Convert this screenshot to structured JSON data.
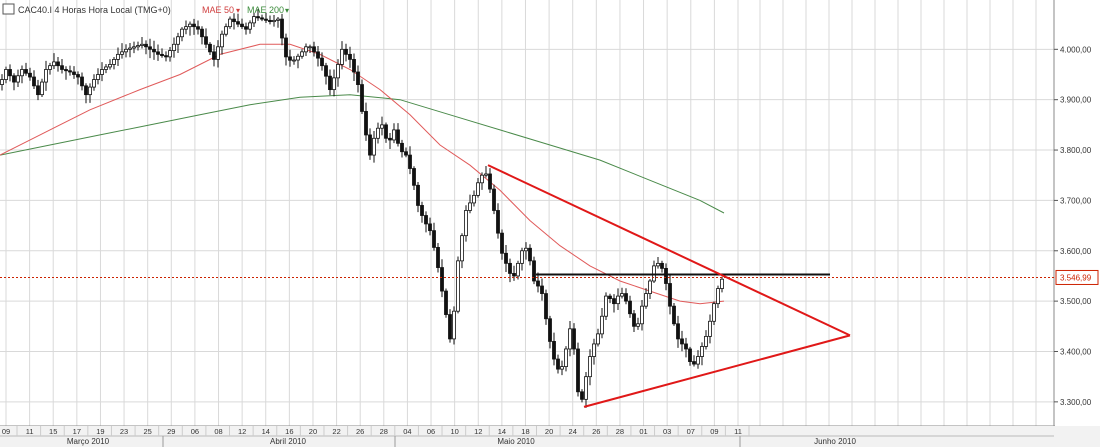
{
  "header": {
    "symbol_label": "CAC40.I 4 Horas Hora Local (TMG+0)",
    "ma50_label": "MAE 50",
    "ma200_label": "MAE 200",
    "icon": "chart-window-icon"
  },
  "colors": {
    "candle_fill": "#111111",
    "ma50": "#e05a5a",
    "ma200": "#4a8a4a",
    "trendline": "#e01818",
    "resistance": "#111111",
    "price_line": "#cc2200",
    "grid": "#d9d9d9"
  },
  "chart_data": {
    "type": "candlestick",
    "ylim": [
      3260,
      4090
    ],
    "y_ticks": [
      3300,
      3400,
      3500,
      3600,
      3700,
      3800,
      3900,
      4000
    ],
    "y_tick_labels": [
      "3.300,00",
      "3.400,00",
      "3.500,00",
      "3.600,00",
      "3.700,00",
      "3.800,00",
      "3.900,00",
      "4.000,00"
    ],
    "current_price": 3546.99,
    "current_price_label": "3.546,99",
    "x_day_labels": [
      "09",
      "11",
      "15",
      "17",
      "19",
      "23",
      "25",
      "29",
      "06",
      "08",
      "12",
      "14",
      "16",
      "20",
      "22",
      "26",
      "28",
      "04",
      "06",
      "10",
      "12",
      "14",
      "18",
      "20",
      "24",
      "26",
      "28",
      "01",
      "03",
      "07",
      "09",
      "11"
    ],
    "month_labels": [
      "Março 2010",
      "Abril 2010",
      "Maio 2010",
      "Junho 2010"
    ],
    "price_path": [
      [
        0,
        3930
      ],
      [
        6,
        3960
      ],
      [
        14,
        3935
      ],
      [
        22,
        3960
      ],
      [
        30,
        3945
      ],
      [
        38,
        3910
      ],
      [
        46,
        3960
      ],
      [
        54,
        3975
      ],
      [
        62,
        3960
      ],
      [
        70,
        3955
      ],
      [
        78,
        3945
      ],
      [
        86,
        3910
      ],
      [
        94,
        3940
      ],
      [
        102,
        3960
      ],
      [
        110,
        3970
      ],
      [
        118,
        3990
      ],
      [
        126,
        4000
      ],
      [
        134,
        4005
      ],
      [
        142,
        4010
      ],
      [
        150,
        4000
      ],
      [
        158,
        3990
      ],
      [
        166,
        3985
      ],
      [
        174,
        4010
      ],
      [
        182,
        4040
      ],
      [
        190,
        4050
      ],
      [
        198,
        4040
      ],
      [
        206,
        4010
      ],
      [
        214,
        3980
      ],
      [
        222,
        4030
      ],
      [
        230,
        4060
      ],
      [
        238,
        4050
      ],
      [
        246,
        4040
      ],
      [
        254,
        4065
      ],
      [
        262,
        4060
      ],
      [
        270,
        4055
      ],
      [
        278,
        4060
      ],
      [
        286,
        3985
      ],
      [
        292,
        3975
      ],
      [
        300,
        3990
      ],
      [
        308,
        4010
      ],
      [
        316,
        3990
      ],
      [
        324,
        3960
      ],
      [
        330,
        3920
      ],
      [
        336,
        3955
      ],
      [
        342,
        4000
      ],
      [
        350,
        3980
      ],
      [
        358,
        3930
      ],
      [
        364,
        3850
      ],
      [
        370,
        3790
      ],
      [
        376,
        3840
      ],
      [
        382,
        3850
      ],
      [
        388,
        3810
      ],
      [
        394,
        3840
      ],
      [
        400,
        3800
      ],
      [
        406,
        3790
      ],
      [
        412,
        3750
      ],
      [
        418,
        3690
      ],
      [
        424,
        3660
      ],
      [
        430,
        3640
      ],
      [
        436,
        3590
      ],
      [
        442,
        3520
      ],
      [
        448,
        3450
      ],
      [
        452,
        3400
      ],
      [
        456,
        3560
      ],
      [
        460,
        3600
      ],
      [
        464,
        3660
      ],
      [
        468,
        3700
      ],
      [
        472,
        3690
      ],
      [
        476,
        3730
      ],
      [
        480,
        3740
      ],
      [
        484,
        3760
      ],
      [
        488,
        3745
      ],
      [
        492,
        3700
      ],
      [
        496,
        3660
      ],
      [
        500,
        3610
      ],
      [
        504,
        3580
      ],
      [
        508,
        3570
      ],
      [
        512,
        3540
      ],
      [
        516,
        3560
      ],
      [
        520,
        3590
      ],
      [
        524,
        3610
      ],
      [
        528,
        3600
      ],
      [
        532,
        3560
      ],
      [
        536,
        3520
      ],
      [
        540,
        3540
      ],
      [
        544,
        3490
      ],
      [
        548,
        3440
      ],
      [
        552,
        3400
      ],
      [
        556,
        3370
      ],
      [
        560,
        3360
      ],
      [
        564,
        3380
      ],
      [
        568,
        3430
      ],
      [
        572,
        3460
      ],
      [
        576,
        3350
      ],
      [
        580,
        3290
      ],
      [
        584,
        3320
      ],
      [
        588,
        3380
      ],
      [
        592,
        3400
      ],
      [
        596,
        3430
      ],
      [
        600,
        3440
      ],
      [
        604,
        3500
      ],
      [
        608,
        3520
      ],
      [
        612,
        3490
      ],
      [
        616,
        3500
      ],
      [
        620,
        3520
      ],
      [
        624,
        3510
      ],
      [
        628,
        3490
      ],
      [
        632,
        3460
      ],
      [
        636,
        3440
      ],
      [
        640,
        3470
      ],
      [
        644,
        3510
      ],
      [
        648,
        3520
      ],
      [
        652,
        3560
      ],
      [
        656,
        3580
      ],
      [
        660,
        3570
      ],
      [
        664,
        3560
      ],
      [
        668,
        3510
      ],
      [
        672,
        3470
      ],
      [
        676,
        3440
      ],
      [
        680,
        3410
      ],
      [
        684,
        3420
      ],
      [
        688,
        3390
      ],
      [
        692,
        3370
      ],
      [
        696,
        3380
      ],
      [
        700,
        3400
      ],
      [
        704,
        3420
      ],
      [
        708,
        3440
      ],
      [
        712,
        3480
      ],
      [
        716,
        3510
      ],
      [
        720,
        3540
      ],
      [
        724,
        3547
      ]
    ],
    "ma50_path": [
      [
        0,
        3790
      ],
      [
        40,
        3830
      ],
      [
        90,
        3880
      ],
      [
        140,
        3920
      ],
      [
        180,
        3950
      ],
      [
        220,
        3990
      ],
      [
        260,
        4010
      ],
      [
        290,
        4010
      ],
      [
        320,
        3990
      ],
      [
        350,
        3960
      ],
      [
        380,
        3920
      ],
      [
        410,
        3870
      ],
      [
        440,
        3810
      ],
      [
        470,
        3770
      ],
      [
        500,
        3720
      ],
      [
        530,
        3660
      ],
      [
        560,
        3610
      ],
      [
        590,
        3570
      ],
      [
        620,
        3540
      ],
      [
        650,
        3520
      ],
      [
        680,
        3500
      ],
      [
        700,
        3495
      ],
      [
        724,
        3500
      ]
    ],
    "ma200_path": [
      [
        0,
        3790
      ],
      [
        50,
        3810
      ],
      [
        100,
        3830
      ],
      [
        150,
        3850
      ],
      [
        200,
        3870
      ],
      [
        250,
        3890
      ],
      [
        300,
        3905
      ],
      [
        350,
        3910
      ],
      [
        400,
        3900
      ],
      [
        450,
        3870
      ],
      [
        500,
        3840
      ],
      [
        550,
        3810
      ],
      [
        600,
        3780
      ],
      [
        650,
        3740
      ],
      [
        700,
        3700
      ],
      [
        724,
        3675
      ]
    ],
    "annotations": {
      "upper_trendline": [
        [
          488,
          3770
        ],
        [
          850,
          3432
        ]
      ],
      "lower_trendline": [
        [
          584,
          3290
        ],
        [
          850,
          3432
        ]
      ],
      "resistance_line": [
        [
          536,
          3553
        ],
        [
          830,
          3553
        ]
      ]
    }
  }
}
